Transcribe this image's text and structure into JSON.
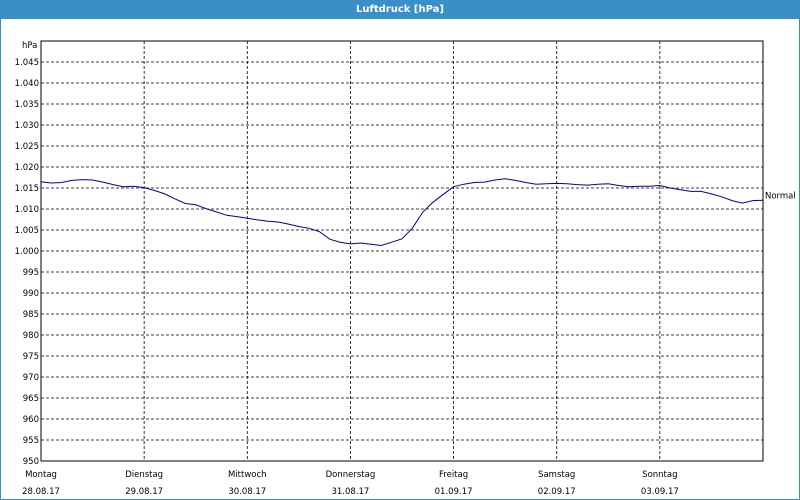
{
  "window": {
    "title": "Luftdruck [hPa]"
  },
  "colors": {
    "title_bar": "#3b8fc8",
    "line": "#0000a0",
    "grid": "#000000"
  },
  "chart_data": {
    "type": "line",
    "title": "Luftdruck [hPa]",
    "ylabel": "hPa",
    "ylim": [
      950,
      1050
    ],
    "yticks": [
      950,
      955,
      960,
      965,
      970,
      975,
      980,
      985,
      990,
      995,
      1000,
      1005,
      1010,
      1015,
      1020,
      1025,
      1030,
      1035,
      1040,
      1045
    ],
    "ytick_labels": [
      "950",
      "955",
      "960",
      "965",
      "970",
      "975",
      "980",
      "985",
      "990",
      "995",
      "1.000",
      "1.005",
      "1.010",
      "1.015",
      "1.020",
      "1.025",
      "1.030",
      "1.035",
      "1.040",
      "1.045"
    ],
    "xlim": [
      0,
      7
    ],
    "xticks": [
      {
        "day": "Montag",
        "date": "28.08.17"
      },
      {
        "day": "Dienstag",
        "date": "29.08.17"
      },
      {
        "day": "Mittwoch",
        "date": "30.08.17"
      },
      {
        "day": "Donnerstag",
        "date": "31.08.17"
      },
      {
        "day": "Freitag",
        "date": "01.09.17"
      },
      {
        "day": "Samstag",
        "date": "02.09.17"
      },
      {
        "day": "Sonntag",
        "date": "03.09.17"
      }
    ],
    "reference_line": {
      "label": "Normal",
      "value": 1013.25
    },
    "grid": true,
    "series": [
      {
        "x": [
          0,
          0.1,
          0.2,
          0.3,
          0.4,
          0.5,
          0.6,
          0.7,
          0.8,
          0.9,
          1.0,
          1.1,
          1.2,
          1.3,
          1.4,
          1.5,
          1.6,
          1.7,
          1.8,
          1.9,
          2.0,
          2.1,
          2.2,
          2.3,
          2.4,
          2.5,
          2.6,
          2.7,
          2.8,
          2.9,
          3.0,
          3.1,
          3.2,
          3.3,
          3.4,
          3.5,
          3.6,
          3.7,
          3.8,
          3.9,
          4.0,
          4.1,
          4.2,
          4.3,
          4.4,
          4.5,
          4.6,
          4.7,
          4.8,
          4.9,
          5.0,
          5.1,
          5.2,
          5.3,
          5.4,
          5.5,
          5.6,
          5.7,
          5.8,
          5.9,
          6.0,
          6.1,
          6.2,
          6.3,
          6.4,
          6.5,
          6.6,
          6.7,
          6.8,
          6.9,
          7.0
        ],
        "values": [
          1016.5,
          1016.2,
          1016.3,
          1016.8,
          1017.0,
          1016.9,
          1016.4,
          1015.8,
          1015.3,
          1015.4,
          1015.1,
          1014.4,
          1013.6,
          1012.4,
          1011.3,
          1011.0,
          1010.1,
          1009.3,
          1008.5,
          1008.2,
          1007.8,
          1007.4,
          1007.1,
          1006.9,
          1006.4,
          1005.8,
          1005.4,
          1004.6,
          1002.8,
          1002.1,
          1001.7,
          1001.9,
          1001.6,
          1001.3,
          1002.1,
          1002.9,
          1005.4,
          1009.2,
          1011.6,
          1013.5,
          1015.3,
          1015.9,
          1016.3,
          1016.4,
          1016.9,
          1017.2,
          1016.8,
          1016.3,
          1015.9,
          1016.0,
          1016.1,
          1016.0,
          1015.8,
          1015.7,
          1015.9,
          1016.0,
          1015.6,
          1015.3,
          1015.4,
          1015.4,
          1015.6,
          1015.0,
          1014.6,
          1014.2,
          1014.2,
          1013.6,
          1012.9,
          1012.0,
          1011.4,
          1012.0,
          1012.1
        ]
      }
    ]
  }
}
